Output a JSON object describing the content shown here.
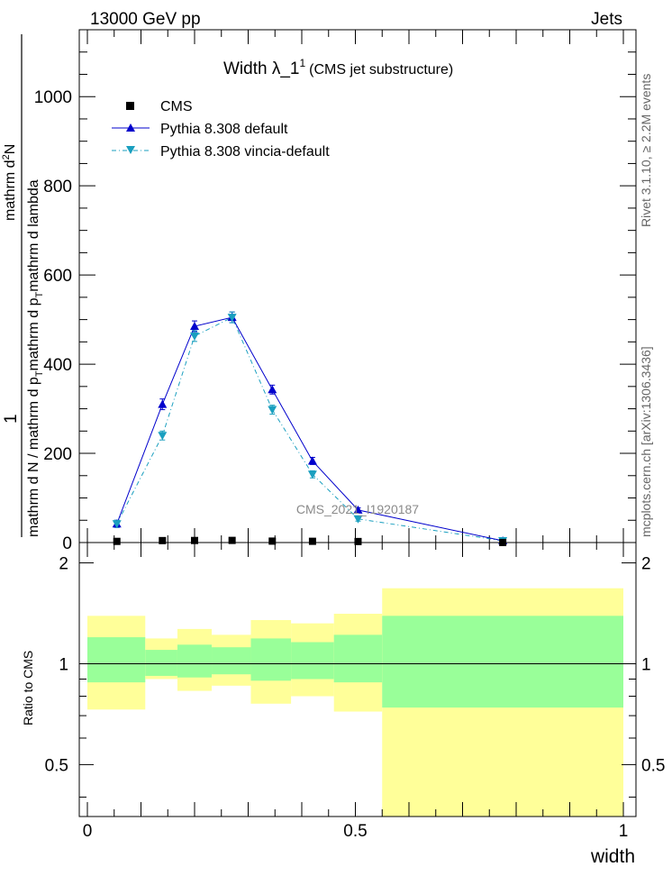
{
  "header": {
    "left": "13000 GeV pp",
    "right": "Jets"
  },
  "title": {
    "main": "Width λ_1",
    "superscript": "1",
    "sub": "(CMS jet substructure)"
  },
  "watermark": "CMS_2021_I1920187",
  "side_text": {
    "rivet": "Rivet 3.1.10, ≥ 2.2M events",
    "mcplots": "mcplots.cern.ch [arXiv:1306.3436]"
  },
  "colors": {
    "cms": "#000000",
    "pythia_default": "#0000cc",
    "vincia": "#1a9fbf",
    "band_inner": "#99ff99",
    "band_outer": "#ffff99"
  },
  "chart_data": [
    {
      "type": "line",
      "panel": "main",
      "ylabel": "1 / mathrm d N / mathrm d p_T  mathrm d²N / mathrm d p_T mathrm d lambda",
      "xlim": [
        0,
        1
      ],
      "ylim": [
        0,
        1150
      ],
      "yticks": [
        0,
        200,
        400,
        600,
        800,
        1000
      ],
      "ytick_labels": [
        "0",
        "200",
        "400",
        "600",
        "800",
        "1000"
      ],
      "legend_position": "top-left",
      "series": [
        {
          "name": "CMS",
          "marker": "square",
          "x": [
            0.055,
            0.14,
            0.2,
            0.27,
            0.345,
            0.42,
            0.505,
            0.775
          ],
          "y": [
            2.6,
            4.4,
            4.6,
            4.8,
            3.2,
            2.8,
            2.3,
            0.1
          ]
        },
        {
          "name": "Pythia 8.308 default",
          "marker": "triangle-up",
          "x": [
            0.055,
            0.14,
            0.2,
            0.27,
            0.345,
            0.42,
            0.505,
            0.775
          ],
          "y": [
            42,
            310,
            485,
            505,
            343,
            183,
            73,
            4
          ],
          "err": [
            8,
            12,
            12,
            12,
            10,
            8,
            5,
            1
          ]
        },
        {
          "name": "Pythia 8.308 vincia-default",
          "marker": "triangle-down",
          "x": [
            0.055,
            0.14,
            0.2,
            0.27,
            0.345,
            0.42,
            0.505,
            0.775
          ],
          "y": [
            42,
            240,
            463,
            505,
            298,
            153,
            53,
            4
          ],
          "err": [
            8,
            10,
            12,
            12,
            10,
            8,
            5,
            1
          ]
        }
      ]
    },
    {
      "type": "area",
      "panel": "ratio",
      "xlabel": "width",
      "ylabel": "Ratio to CMS",
      "xlim": [
        0,
        1
      ],
      "ylim": [
        0.35,
        2.3
      ],
      "xticks": [
        0,
        0.5,
        1
      ],
      "xtick_labels": [
        "0",
        "0.5",
        "1"
      ],
      "yticks": [
        0.5,
        1,
        2
      ],
      "ytick_labels": [
        "0.5",
        "1",
        "2"
      ],
      "reference_line": 1,
      "bins": [
        {
          "lo": 0.0,
          "hi": 0.108,
          "inner": [
            0.88,
            1.2
          ],
          "outer": [
            0.73,
            1.39
          ]
        },
        {
          "lo": 0.108,
          "hi": 0.168,
          "inner": [
            0.92,
            1.1
          ],
          "outer": [
            0.9,
            1.19
          ]
        },
        {
          "lo": 0.168,
          "hi": 0.232,
          "inner": [
            0.91,
            1.14
          ],
          "outer": [
            0.83,
            1.27
          ]
        },
        {
          "lo": 0.232,
          "hi": 0.305,
          "inner": [
            0.93,
            1.12
          ],
          "outer": [
            0.86,
            1.22
          ]
        },
        {
          "lo": 0.305,
          "hi": 0.38,
          "inner": [
            0.89,
            1.19
          ],
          "outer": [
            0.76,
            1.35
          ]
        },
        {
          "lo": 0.38,
          "hi": 0.46,
          "inner": [
            0.9,
            1.16
          ],
          "outer": [
            0.8,
            1.32
          ]
        },
        {
          "lo": 0.46,
          "hi": 0.55,
          "inner": [
            0.88,
            1.22
          ],
          "outer": [
            0.72,
            1.41
          ]
        },
        {
          "lo": 0.55,
          "hi": 1.0,
          "inner": [
            0.74,
            1.39
          ],
          "outer": [
            0.35,
            1.68
          ]
        }
      ]
    }
  ]
}
